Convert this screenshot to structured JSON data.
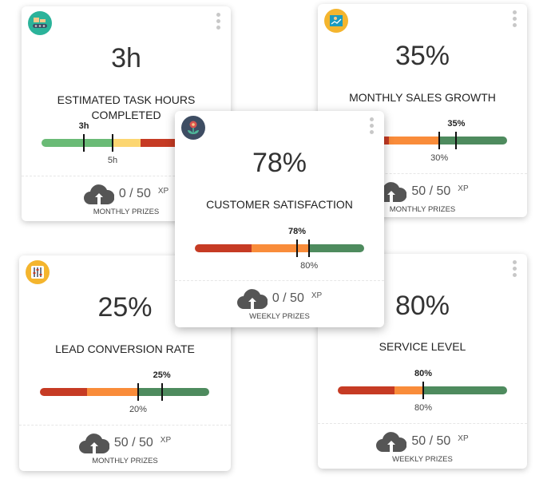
{
  "colors": {
    "red": "#c63b24",
    "orange": "#f98c3a",
    "green": "#4e8b5e",
    "light_green": "#6abb76",
    "yellow": "#fcd671"
  },
  "cards": [
    {
      "id": "task-hours",
      "icon": "conveyor-icon",
      "icon_color": "#2bb39a",
      "value": "3h",
      "title": "ESTIMATED TASK HOURS COMPLETED",
      "bar_value_label": "3h",
      "bar_target_label": "5h",
      "xp": "0 / 50",
      "xp_unit": "XP",
      "prize_period": "MONTHLY PRIZES"
    },
    {
      "id": "sales-growth",
      "icon": "chart-board-icon",
      "icon_color": "#f4b52e",
      "value": "35%",
      "title": "MONTHLY SALES GROWTH",
      "bar_value_label": "35%",
      "bar_target_label": "30%",
      "xp": "50 / 50",
      "xp_unit": "XP",
      "prize_period": "MONTHLY PRIZES"
    },
    {
      "id": "customer-satisfaction",
      "icon": "flower-icon",
      "icon_color": "#3e4d63",
      "value": "78%",
      "title": "CUSTOMER SATISFACTION",
      "bar_value_label": "78%",
      "bar_target_label": "80%",
      "xp": "0 / 50",
      "xp_unit": "XP",
      "prize_period": "WEEKLY PRIZES"
    },
    {
      "id": "lead-conversion",
      "icon": "sliders-icon",
      "icon_color": "#f4b52e",
      "value": "25%",
      "title": "LEAD CONVERSION RATE",
      "bar_value_label": "25%",
      "bar_target_label": "20%",
      "xp": "50 / 50",
      "xp_unit": "XP",
      "prize_period": "MONTHLY PRIZES"
    },
    {
      "id": "service-level",
      "icon": "none",
      "icon_color": "",
      "value": "80%",
      "title": "SERVICE LEVEL",
      "bar_value_label": "80%",
      "bar_target_label": "80%",
      "xp": "50 / 50",
      "xp_unit": "XP",
      "prize_period": "WEEKLY PRIZES"
    }
  ]
}
